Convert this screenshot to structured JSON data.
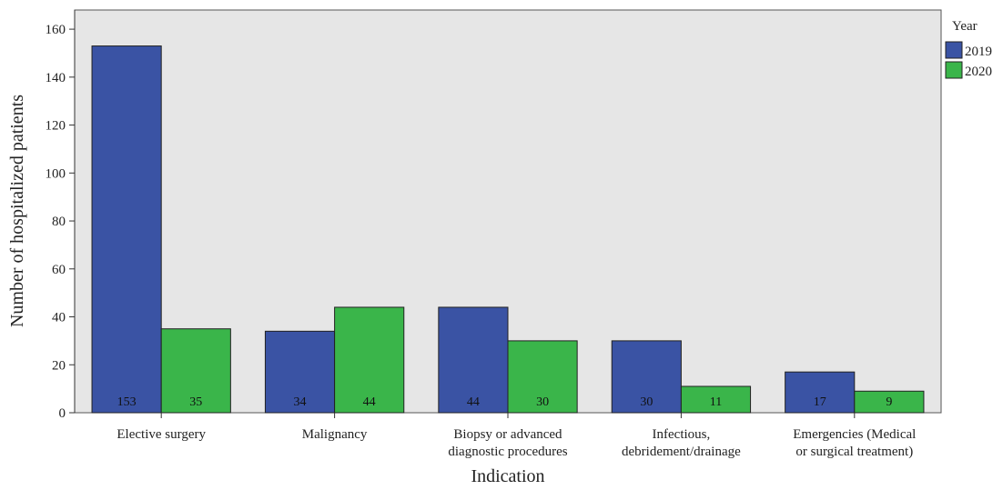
{
  "chart_data": {
    "type": "bar",
    "xlabel": "Indication",
    "ylabel": "Number of hospitalized patients",
    "ylim": [
      0,
      168
    ],
    "yticks": [
      0,
      20,
      40,
      60,
      80,
      100,
      120,
      140,
      160
    ],
    "grid": false,
    "legend": {
      "title": "Year",
      "placement": "right"
    },
    "categories": [
      [
        "Elective surgery"
      ],
      [
        "Malignancy"
      ],
      [
        "Biopsy or advanced",
        "diagnostic procedures"
      ],
      [
        "Infectious,",
        "debridement/drainage"
      ],
      [
        "Emergencies (Medical",
        "or surgical treatment)"
      ]
    ],
    "series": [
      {
        "name": "2019",
        "color": "#3a53a4",
        "values": [
          153,
          34,
          44,
          30,
          17
        ]
      },
      {
        "name": "2020",
        "color": "#3ab54a",
        "values": [
          35,
          44,
          30,
          11,
          9
        ]
      }
    ],
    "plot_background": "#e6e6e6"
  }
}
